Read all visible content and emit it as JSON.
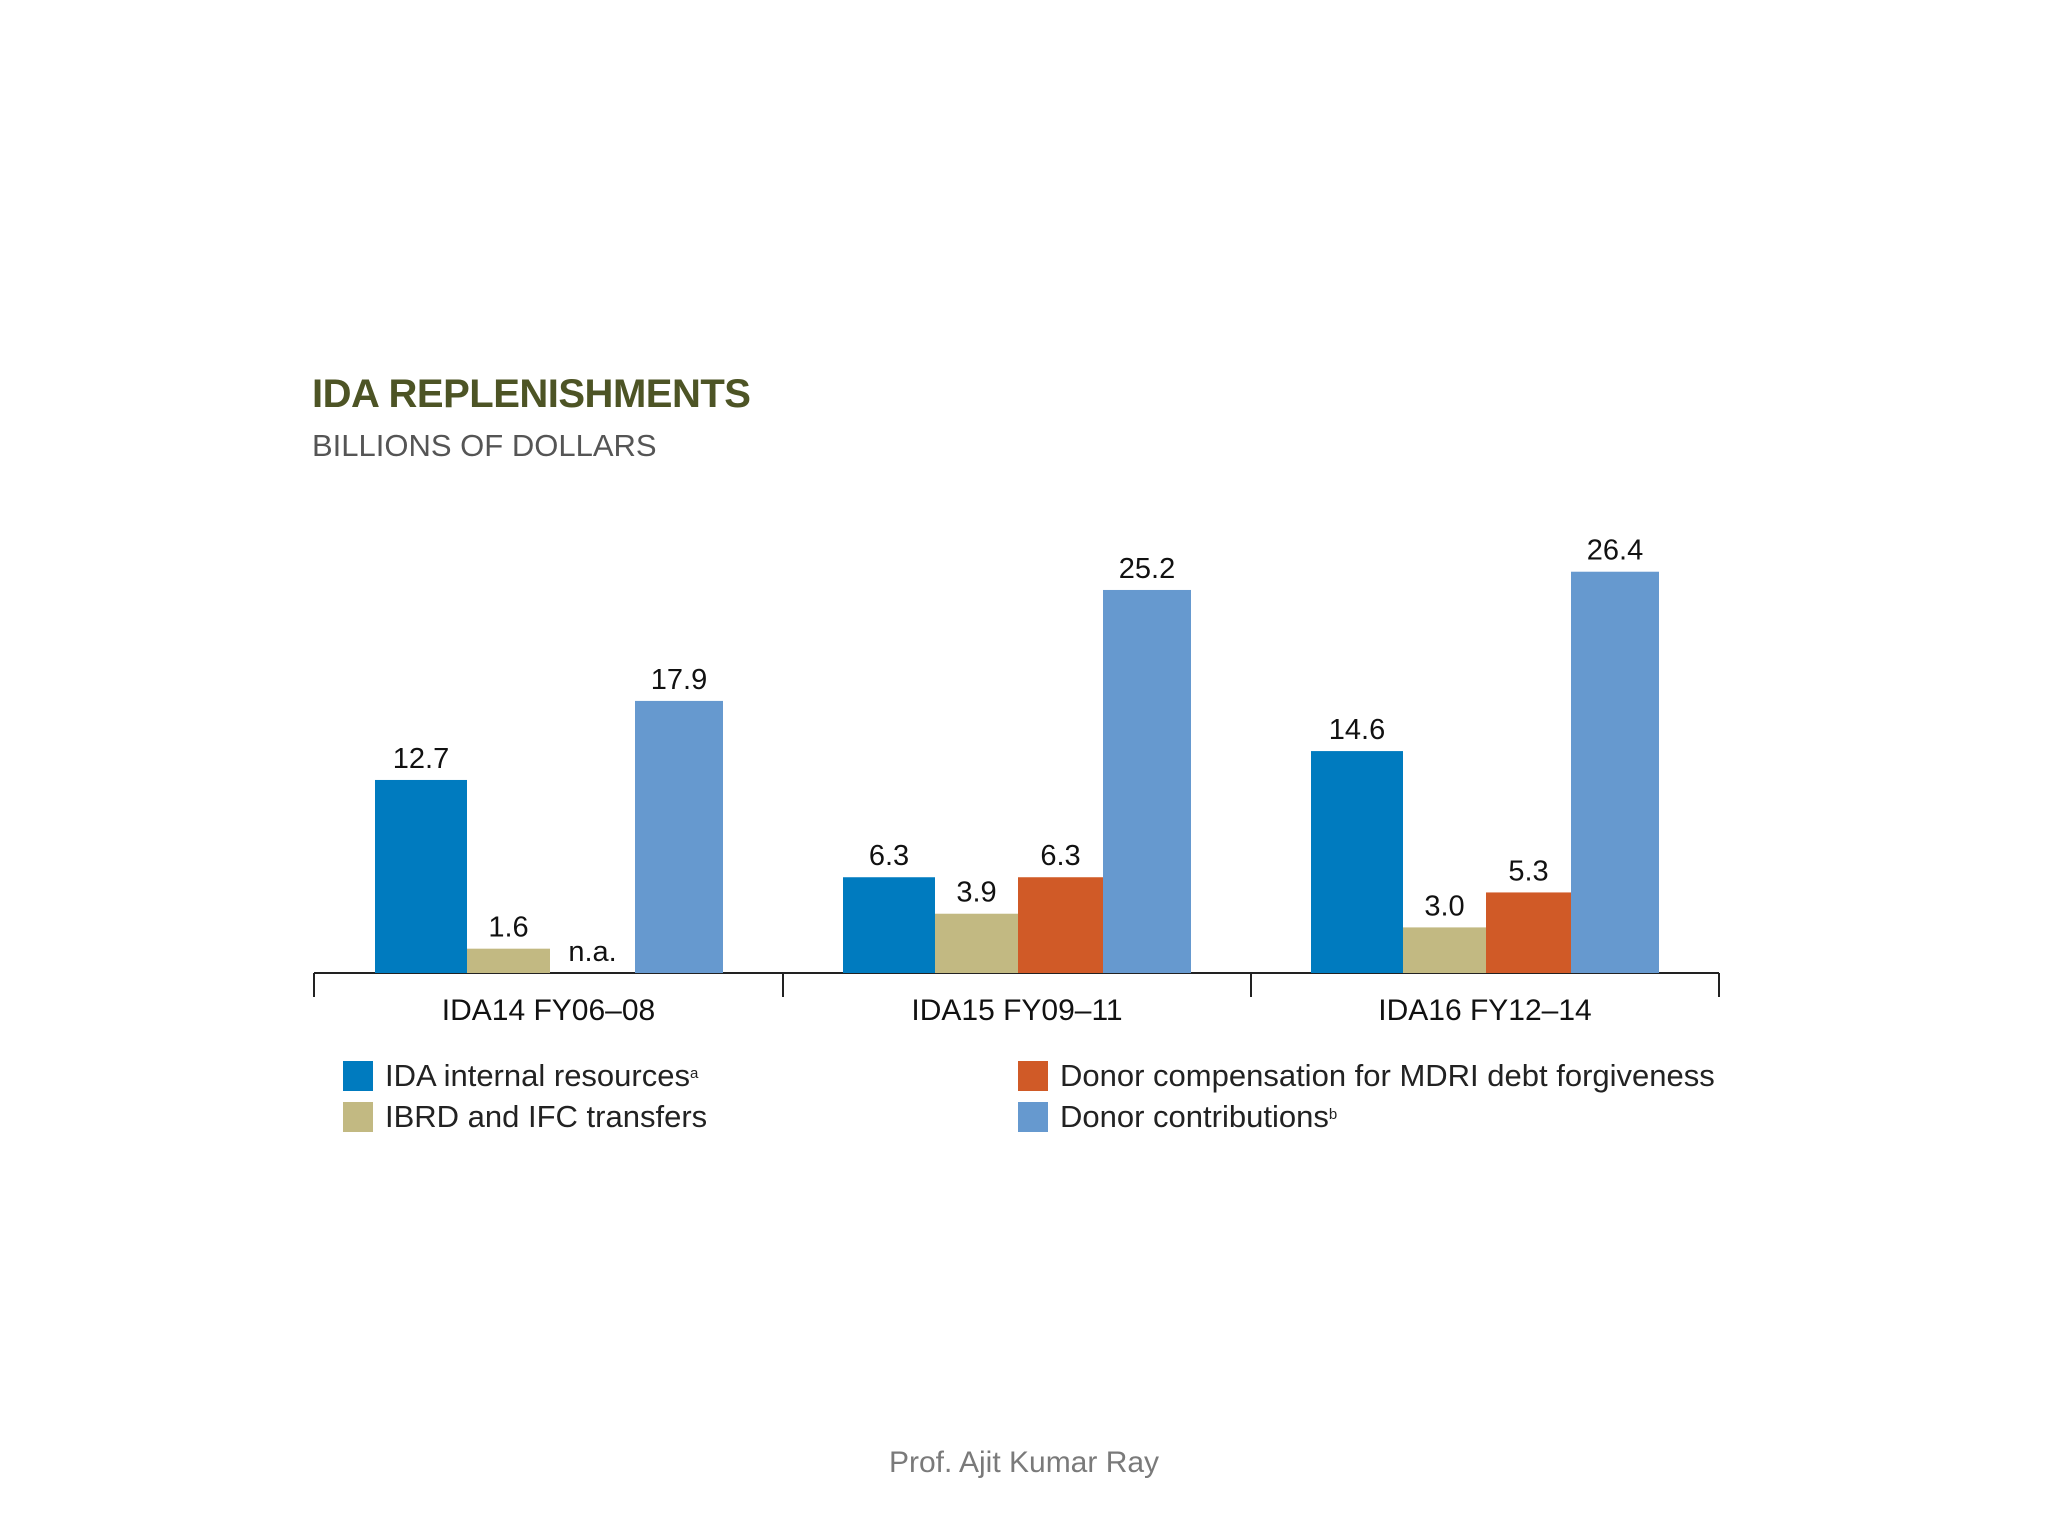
{
  "chart_data": {
    "type": "bar",
    "title": "IDA REPLENISHMENTS",
    "subtitle": "BILLIONS OF DOLLARS",
    "categories": [
      "IDA14 FY06–08",
      "IDA15 FY09–11",
      "IDA16 FY12–14"
    ],
    "series": [
      {
        "name": "IDA internal resources",
        "superscript": "a",
        "color": "#007bbf",
        "values": [
          12.7,
          6.3,
          14.6
        ],
        "labels": [
          "12.7",
          "6.3",
          "14.6"
        ]
      },
      {
        "name": "IBRD and IFC transfers",
        "superscript": "",
        "color": "#c2b982",
        "values": [
          1.6,
          3.9,
          3.0
        ],
        "labels": [
          "1.6",
          "3.9",
          "3.0"
        ]
      },
      {
        "name": "Donor compensation for MDRI debt forgiveness",
        "superscript": "",
        "color": "#d05a27",
        "values": [
          null,
          6.3,
          5.3
        ],
        "labels": [
          "n.a.",
          "6.3",
          "5.3"
        ]
      },
      {
        "name": "Donor contributions",
        "superscript": "b",
        "color": "#6699cf",
        "values": [
          17.9,
          25.2,
          26.4
        ],
        "labels": [
          "17.9",
          "25.2",
          "26.4"
        ]
      }
    ],
    "ylim": [
      0,
      27
    ],
    "xlabel": "",
    "ylabel": ""
  },
  "footer": {
    "author": "Prof. Ajit Kumar Ray"
  }
}
